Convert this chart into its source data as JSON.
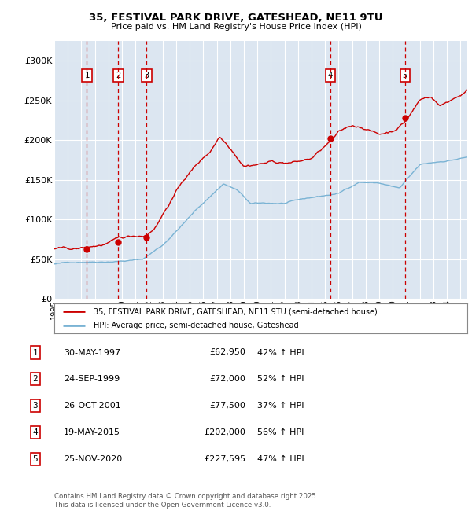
{
  "title_line1": "35, FESTIVAL PARK DRIVE, GATESHEAD, NE11 9TU",
  "title_line2": "Price paid vs. HM Land Registry's House Price Index (HPI)",
  "background_color": "#dce6f1",
  "plot_bg_color": "#dce6f1",
  "fig_bg_color": "#ffffff",
  "red_line_color": "#cc0000",
  "blue_line_color": "#7ab3d4",
  "dashed_line_color": "#cc0000",
  "purchases": [
    {
      "label": "1",
      "date_dec": 1997.41,
      "price": 62950
    },
    {
      "label": "2",
      "date_dec": 1999.73,
      "price": 72000
    },
    {
      "label": "3",
      "date_dec": 2001.82,
      "price": 77500
    },
    {
      "label": "4",
      "date_dec": 2015.38,
      "price": 202000
    },
    {
      "label": "5",
      "date_dec": 2020.9,
      "price": 227595
    }
  ],
  "table_rows": [
    {
      "num": "1",
      "date": "30-MAY-1997",
      "price": "£62,950",
      "hpi": "42% ↑ HPI"
    },
    {
      "num": "2",
      "date": "24-SEP-1999",
      "price": "£72,000",
      "hpi": "52% ↑ HPI"
    },
    {
      "num": "3",
      "date": "26-OCT-2001",
      "price": "£77,500",
      "hpi": "37% ↑ HPI"
    },
    {
      "num": "4",
      "date": "19-MAY-2015",
      "price": "£202,000",
      "hpi": "56% ↑ HPI"
    },
    {
      "num": "5",
      "date": "25-NOV-2020",
      "price": "£227,595",
      "hpi": "47% ↑ HPI"
    }
  ],
  "legend_line1": "35, FESTIVAL PARK DRIVE, GATESHEAD, NE11 9TU (semi-detached house)",
  "legend_line2": "HPI: Average price, semi-detached house, Gateshead",
  "footer": "Contains HM Land Registry data © Crown copyright and database right 2025.\nThis data is licensed under the Open Government Licence v3.0.",
  "ylim": [
    0,
    325000
  ],
  "xlim_start": 1995.0,
  "xlim_end": 2025.5,
  "yticks": [
    0,
    50000,
    100000,
    150000,
    200000,
    250000,
    300000
  ],
  "ytick_labels": [
    "£0",
    "£50K",
    "£100K",
    "£150K",
    "£200K",
    "£250K",
    "£300K"
  ],
  "xtick_years": [
    1995,
    1996,
    1997,
    1998,
    1999,
    2000,
    2001,
    2002,
    2003,
    2004,
    2005,
    2006,
    2007,
    2008,
    2009,
    2010,
    2011,
    2012,
    2013,
    2014,
    2015,
    2016,
    2017,
    2018,
    2019,
    2020,
    2021,
    2022,
    2023,
    2024,
    2025
  ]
}
